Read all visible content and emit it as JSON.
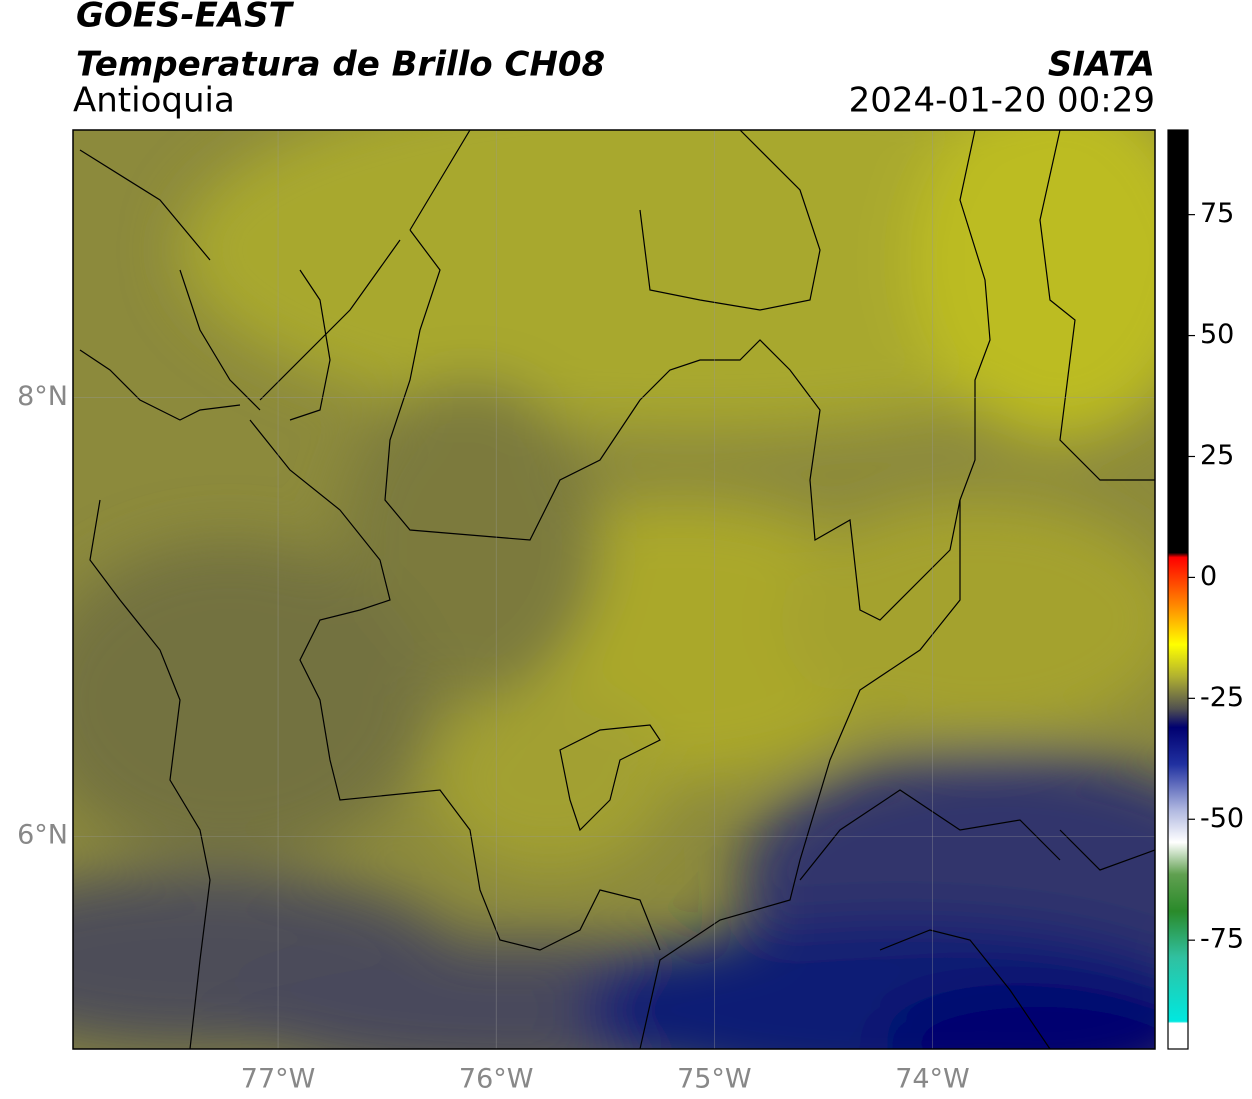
{
  "header": {
    "title": "GOES-EAST",
    "subtitle": "Temperatura de Brillo CH08",
    "region": "Antioquia",
    "source": "SIATA",
    "timestamp": "2024-01-20 00:29"
  },
  "map": {
    "xlim": [
      -77.94,
      -72.98
    ],
    "ylim": [
      5.03,
      9.22
    ],
    "xticks": [
      {
        "value": -77,
        "label": "77°W"
      },
      {
        "value": -76,
        "label": "76°W"
      },
      {
        "value": -75,
        "label": "75°W"
      },
      {
        "value": -74,
        "label": "74°W"
      }
    ],
    "yticks": [
      {
        "value": 8,
        "label": "8°N"
      },
      {
        "value": 6,
        "label": "6°N"
      }
    ],
    "grid": true
  },
  "colorbar": {
    "ylim": [
      -97.5,
      92.5
    ],
    "yticks": [
      75,
      50,
      25,
      0,
      -25,
      -50,
      -75
    ]
  }
}
